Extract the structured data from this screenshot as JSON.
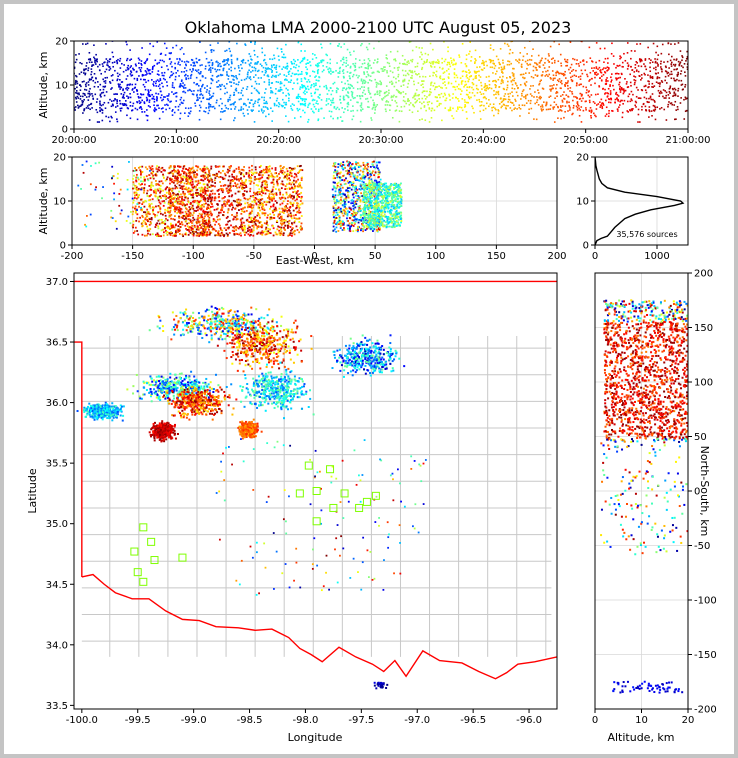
{
  "title": "Oklahoma LMA 2000-2100 UTC August 05, 2023",
  "source_count_label": "35,576 sources",
  "colors": {
    "jet": [
      "#00007f",
      "#0000ff",
      "#007fff",
      "#00ffff",
      "#7fff7f",
      "#ffff00",
      "#ff7f00",
      "#ff0000",
      "#7f0000"
    ],
    "boundary": "#ff0000",
    "counties": "#c8c8c8",
    "stations": "#7fff00"
  },
  "chart_data": [
    {
      "id": "time-height",
      "type": "scatter",
      "ylabel": "Altitude, km",
      "xlim": [
        "20:00:00",
        "21:00:00"
      ],
      "x_ticks": [
        "20:00:00",
        "20:10:00",
        "20:20:00",
        "20:30:00",
        "20:40:00",
        "20:50:00",
        "21:00:00"
      ],
      "ylim": [
        0,
        20
      ],
      "y_ticks": [
        "0",
        "10",
        "20"
      ],
      "series": [
        {
          "name": "",
          "x_start": "20:00:00",
          "x_end": "21:00:00",
          "y_core": [
            4,
            16
          ],
          "y_max": 20
        }
      ]
    },
    {
      "id": "ew-height",
      "type": "scatter",
      "xlabel": "East-West, km",
      "ylabel": "Altitude, km",
      "xlim": [
        -200,
        200
      ],
      "x_ticks": [
        "-200",
        "-150",
        "-100",
        "-50",
        "0",
        "50",
        "100",
        "150",
        "200"
      ],
      "ylim": [
        0,
        20
      ],
      "y_ticks": [
        "0",
        "10",
        "20"
      ],
      "clusters": [
        {
          "x": [
            -150,
            -85
          ],
          "y": [
            2,
            18
          ]
        },
        {
          "x": [
            -120,
            -60
          ],
          "y": [
            2,
            18
          ]
        },
        {
          "x": [
            -60,
            -10
          ],
          "y": [
            2,
            18
          ]
        },
        {
          "x": [
            15,
            55
          ],
          "y": [
            3,
            19
          ]
        },
        {
          "x": [
            40,
            72
          ],
          "y": [
            4,
            14
          ]
        }
      ]
    },
    {
      "id": "altitude-histogram",
      "type": "line",
      "xlim": [
        0,
        1500
      ],
      "x_ticks": [
        "0",
        "1000"
      ],
      "ylim": [
        0,
        20
      ],
      "y_ticks": [
        "0",
        "10",
        "20"
      ],
      "series": [
        {
          "name": "",
          "altitude_km": [
            0,
            1,
            1.5,
            2,
            3,
            4,
            5,
            6,
            7,
            8,
            9,
            9.5,
            10,
            11,
            12,
            13,
            14,
            15,
            16,
            17,
            18,
            19,
            20
          ],
          "count": [
            0,
            30,
            100,
            200,
            260,
            320,
            400,
            480,
            650,
            900,
            1280,
            1420,
            1380,
            1000,
            480,
            200,
            110,
            70,
            50,
            30,
            15,
            8,
            0
          ]
        }
      ]
    },
    {
      "id": "plan-view",
      "type": "scatter",
      "xlabel": "Longitude",
      "ylabel": "Latitude",
      "xlim": [
        -100.07,
        -95.75
      ],
      "x_ticks": [
        "-100.0",
        "-99.5",
        "-99.0",
        "-98.5",
        "-98.0",
        "-97.5",
        "-97.0",
        "-96.5",
        "-96.0"
      ],
      "ylim": [
        33.47,
        37.07
      ],
      "y_ticks": [
        "33.5",
        "34.0",
        "34.5",
        "35.0",
        "35.5",
        "36.0",
        "36.5",
        "37.0"
      ],
      "storm_clusters": [
        {
          "lon": [
            -99.4,
            -98.1
          ],
          "lat": [
            36.5,
            36.8
          ]
        },
        {
          "lon": [
            -98.8,
            -97.95
          ],
          "lat": [
            36.25,
            36.7
          ]
        },
        {
          "lon": [
            -97.8,
            -97.1
          ],
          "lat": [
            36.2,
            36.55
          ]
        },
        {
          "lon": [
            -99.6,
            -98.7
          ],
          "lat": [
            36.0,
            36.25
          ]
        },
        {
          "lon": [
            -99.3,
            -98.6
          ],
          "lat": [
            35.85,
            36.15
          ]
        },
        {
          "lon": [
            -98.6,
            -97.9
          ],
          "lat": [
            35.9,
            36.3
          ]
        },
        {
          "lon": [
            -99.4,
            -99.15
          ],
          "lat": [
            35.68,
            35.85
          ]
        },
        {
          "lon": [
            -98.6,
            -98.4
          ],
          "lat": [
            35.7,
            35.85
          ]
        },
        {
          "lon": [
            -100.0,
            -99.6
          ],
          "lat": [
            35.85,
            36.0
          ]
        },
        {
          "lon": [
            -97.4,
            -97.25
          ],
          "lat": [
            33.63,
            33.7
          ]
        }
      ],
      "stations": [
        {
          "lon": -99.45,
          "lat": 34.97
        },
        {
          "lon": -99.38,
          "lat": 34.85
        },
        {
          "lon": -99.35,
          "lat": 34.7
        },
        {
          "lon": -99.53,
          "lat": 34.77
        },
        {
          "lon": -99.5,
          "lat": 34.6
        },
        {
          "lon": -99.45,
          "lat": 34.52
        },
        {
          "lon": -99.1,
          "lat": 34.72
        },
        {
          "lon": -98.05,
          "lat": 35.25
        },
        {
          "lon": -97.97,
          "lat": 35.48
        },
        {
          "lon": -97.78,
          "lat": 35.45
        },
        {
          "lon": -97.9,
          "lat": 35.27
        },
        {
          "lon": -97.75,
          "lat": 35.13
        },
        {
          "lon": -97.65,
          "lat": 35.25
        },
        {
          "lon": -97.52,
          "lat": 35.13
        },
        {
          "lon": -97.45,
          "lat": 35.18
        },
        {
          "lon": -97.37,
          "lat": 35.23
        },
        {
          "lon": -97.9,
          "lat": 35.02
        }
      ]
    },
    {
      "id": "ns-height",
      "type": "scatter",
      "xlabel": "Altitude, km",
      "ylabel": "North-South, km",
      "xlim": [
        0,
        20
      ],
      "x_ticks": [
        "0",
        "10",
        "20"
      ],
      "ylim": [
        -200,
        200
      ],
      "y_ticks": [
        "-200",
        "-150",
        "-100",
        "-50",
        "0",
        "50",
        "100",
        "150",
        "200"
      ],
      "clusters": [
        {
          "x": [
            2,
            20
          ],
          "y": [
            45,
            175
          ]
        },
        {
          "x": [
            1,
            20
          ],
          "y": [
            -60,
            45
          ]
        },
        {
          "x": [
            3,
            19
          ],
          "y": [
            -185,
            -175
          ]
        }
      ]
    }
  ]
}
